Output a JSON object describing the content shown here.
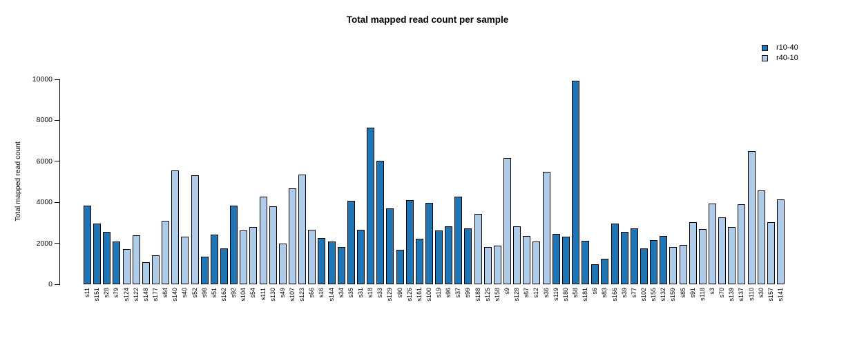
{
  "title": "Total mapped read count per sample",
  "colors": {
    "r10-40": "#2076B5",
    "r40-10": "#AECBE9",
    "bar_border": "#000000"
  },
  "legend": {
    "position": "top-right",
    "items": [
      {
        "label": "r10-40",
        "color": "#2076B5"
      },
      {
        "label": "r40-10",
        "color": "#AECBE9"
      }
    ]
  },
  "chart_data": {
    "type": "bar",
    "title": "Total mapped read count per sample",
    "xlabel": "",
    "ylabel": "Total mapped read count",
    "ylim": [
      0,
      10000
    ],
    "yticks": [
      0,
      2000,
      4000,
      6000,
      8000,
      10000
    ],
    "grid": false,
    "legend_position": "top-right",
    "categories": [
      "s11",
      "s151",
      "s28",
      "s79",
      "s124",
      "s122",
      "s148",
      "s177",
      "s64",
      "s140",
      "s40",
      "s52",
      "s98",
      "s51",
      "s162",
      "s92",
      "s104",
      "s54",
      "s111",
      "s130",
      "s49",
      "s107",
      "s123",
      "s66",
      "s16",
      "s144",
      "s34",
      "s35",
      "s31",
      "s18",
      "s33",
      "s129",
      "s90",
      "s126",
      "s161",
      "s100",
      "s19",
      "s96",
      "s37",
      "s99",
      "s188",
      "s125",
      "s158",
      "s9",
      "s128",
      "s67",
      "s12",
      "s36",
      "s119",
      "s180",
      "s58",
      "s181",
      "s6",
      "s83",
      "s166",
      "s39",
      "s77",
      "s102",
      "s155",
      "s132",
      "s159",
      "s85",
      "s91",
      "s118",
      "s3",
      "s70",
      "s139",
      "s137",
      "s110",
      "s30",
      "s157",
      "s141"
    ],
    "values": [
      3850,
      2980,
      2560,
      2090,
      1720,
      2390,
      1080,
      1420,
      3100,
      5560,
      2340,
      5320,
      1340,
      2410,
      1760,
      3850,
      2630,
      2800,
      4290,
      3810,
      1980,
      4670,
      5370,
      2650,
      2250,
      2090,
      1810,
      4060,
      2670,
      7660,
      6020,
      3690,
      1700,
      4120,
      2210,
      3980,
      2620,
      2820,
      4290,
      2730,
      3440,
      1810,
      1890,
      6170,
      2820,
      2370,
      2090,
      5480,
      2450,
      2320,
      9950,
      2120,
      970,
      1250,
      2960,
      2560,
      2740,
      1760,
      2150,
      2370,
      1810,
      1920,
      3020,
      2710,
      3940,
      3250,
      2800,
      3910,
      6490,
      4580,
      3020,
      4130
    ],
    "groups": [
      "r10-40",
      "r10-40",
      "r10-40",
      "r10-40",
      "r40-10",
      "r40-10",
      "r40-10",
      "r40-10",
      "r40-10",
      "r40-10",
      "r40-10",
      "r40-10",
      "r10-40",
      "r10-40",
      "r10-40",
      "r10-40",
      "r40-10",
      "r40-10",
      "r40-10",
      "r40-10",
      "r40-10",
      "r40-10",
      "r40-10",
      "r40-10",
      "r10-40",
      "r10-40",
      "r10-40",
      "r10-40",
      "r10-40",
      "r10-40",
      "r10-40",
      "r10-40",
      "r10-40",
      "r10-40",
      "r10-40",
      "r10-40",
      "r10-40",
      "r10-40",
      "r10-40",
      "r10-40",
      "r40-10",
      "r40-10",
      "r40-10",
      "r40-10",
      "r40-10",
      "r40-10",
      "r40-10",
      "r40-10",
      "r10-40",
      "r10-40",
      "r10-40",
      "r10-40",
      "r10-40",
      "r10-40",
      "r10-40",
      "r10-40",
      "r10-40",
      "r10-40",
      "r10-40",
      "r10-40",
      "r40-10",
      "r40-10",
      "r40-10",
      "r40-10",
      "r40-10",
      "r40-10",
      "r40-10",
      "r40-10",
      "r40-10",
      "r40-10",
      "r40-10",
      "r40-10"
    ]
  }
}
